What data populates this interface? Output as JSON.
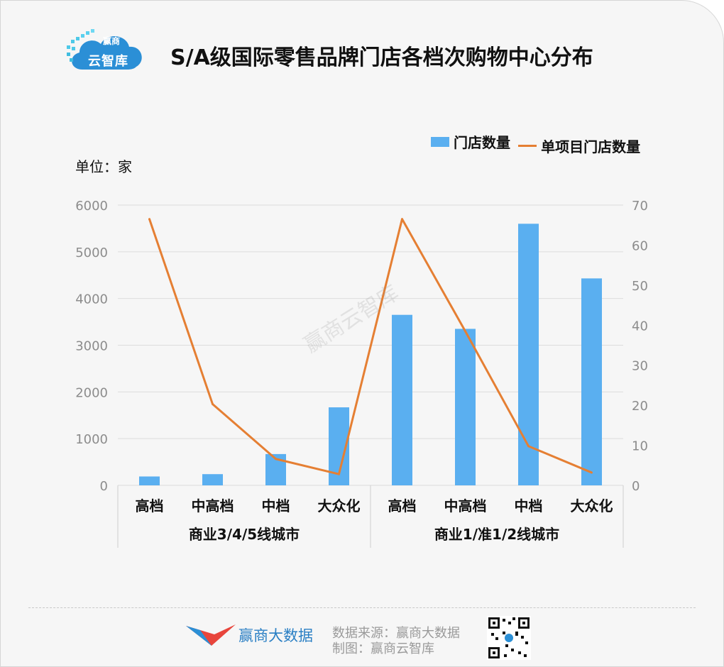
{
  "header": {
    "logo_line1": "赢商",
    "logo_line2": "云智库",
    "title": "S/A级国际零售品牌门店各档次购物中心分布"
  },
  "unit_label": "单位：家",
  "watermark": "赢商云智库",
  "colors": {
    "bar": "#5aaff0",
    "line": "#e57f33",
    "grid": "#dcdcdc",
    "axis_text": "#8c8c8c",
    "logo_blue": "#2b8fd6"
  },
  "chart_data": {
    "type": "bar",
    "categories": [
      "高档",
      "中高档",
      "中档",
      "大众化",
      "高档",
      "中高档",
      "中档",
      "大众化"
    ],
    "groups": [
      {
        "label": "商业3/4/5线城市",
        "categories": [
          "高档",
          "中高档",
          "中档",
          "大众化"
        ]
      },
      {
        "label": "商业1/准1/2线城市",
        "categories": [
          "高档",
          "中高档",
          "中档",
          "大众化"
        ]
      }
    ],
    "series": [
      {
        "name": "门店数量",
        "type": "bar",
        "axis": "left",
        "values": [
          190,
          240,
          670,
          1670,
          3650,
          3350,
          5600,
          4430
        ]
      },
      {
        "name": "单项目门店数量",
        "type": "line",
        "axis": "right",
        "values": [
          66.5,
          20.3,
          6.6,
          2.8,
          66.5,
          38.5,
          9.8,
          3.2
        ]
      }
    ],
    "y_left": {
      "ticks": [
        "0",
        "1000",
        "2000",
        "3000",
        "4000",
        "5000",
        "6000"
      ],
      "lim": [
        0,
        6000
      ]
    },
    "y_right": {
      "ticks": [
        "0",
        "10",
        "20",
        "30",
        "40",
        "50",
        "60",
        "70"
      ],
      "lim": [
        0,
        70
      ]
    },
    "legend_position": "top-right",
    "grid": true
  },
  "footer": {
    "brand": "赢商大数据",
    "source": "数据来源：赢商大数据",
    "credit": "制图：赢商云智库"
  }
}
